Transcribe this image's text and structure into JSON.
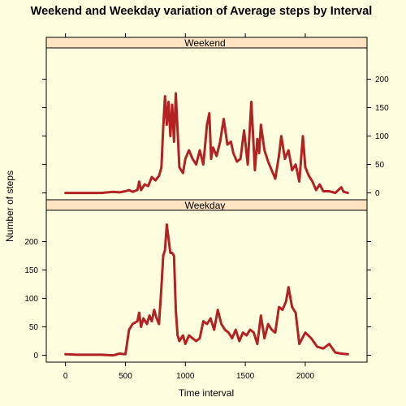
{
  "chart_data": {
    "type": "line",
    "title": "Weekend and Weekday variation of Average steps by Interval",
    "xlabel": "Time interval",
    "ylabel": "Number of steps",
    "xlim": [
      -160,
      2515
    ],
    "x_ticks": [
      0,
      500,
      1000,
      1500,
      2000
    ],
    "y_ticks": [
      0,
      50,
      100,
      150,
      200
    ],
    "grid": false,
    "line_color": "#B22222",
    "strip_color": "#FFE4C4",
    "panels": [
      {
        "name": "Weekend",
        "ylim": [
          -12,
          255
        ],
        "y_tick_side": "right",
        "x": [
          0,
          100,
          200,
          300,
          400,
          450,
          500,
          530,
          560,
          600,
          615,
          630,
          660,
          690,
          720,
          750,
          780,
          800,
          815,
          830,
          845,
          860,
          875,
          890,
          905,
          920,
          950,
          980,
          1000,
          1030,
          1060,
          1090,
          1120,
          1150,
          1180,
          1200,
          1215,
          1230,
          1260,
          1290,
          1320,
          1350,
          1380,
          1400,
          1430,
          1460,
          1490,
          1520,
          1550,
          1580,
          1600,
          1615,
          1630,
          1660,
          1690,
          1720,
          1750,
          1780,
          1800,
          1830,
          1860,
          1890,
          1920,
          1950,
          1980,
          2000,
          2030,
          2060,
          2090,
          2120,
          2150,
          2200,
          2250,
          2300,
          2320,
          2355
        ],
        "y": [
          0,
          0,
          0,
          0,
          2,
          1,
          3,
          5,
          2,
          5,
          20,
          5,
          15,
          12,
          28,
          22,
          30,
          45,
          115,
          170,
          120,
          160,
          100,
          155,
          90,
          175,
          45,
          35,
          60,
          75,
          60,
          50,
          75,
          50,
          120,
          140,
          60,
          80,
          65,
          90,
          130,
          85,
          90,
          70,
          55,
          60,
          110,
          50,
          160,
          40,
          95,
          70,
          120,
          75,
          55,
          40,
          25,
          65,
          100,
          60,
          75,
          40,
          50,
          20,
          100,
          45,
          30,
          20,
          5,
          15,
          3,
          3,
          0,
          10,
          2,
          0
        ]
      },
      {
        "name": "Weekday",
        "ylim": [
          -12,
          255
        ],
        "y_tick_side": "left",
        "x": [
          0,
          100,
          200,
          300,
          400,
          450,
          500,
          530,
          560,
          600,
          615,
          630,
          650,
          680,
          700,
          720,
          740,
          760,
          780,
          800,
          815,
          830,
          845,
          860,
          875,
          890,
          905,
          920,
          935,
          950,
          980,
          1000,
          1030,
          1060,
          1090,
          1120,
          1150,
          1180,
          1210,
          1240,
          1270,
          1300,
          1330,
          1360,
          1390,
          1420,
          1450,
          1480,
          1510,
          1540,
          1570,
          1600,
          1630,
          1660,
          1690,
          1720,
          1750,
          1780,
          1810,
          1840,
          1860,
          1890,
          1920,
          1950,
          2000,
          2050,
          2100,
          2150,
          2200,
          2250,
          2300,
          2355
        ],
        "y": [
          2,
          1,
          1,
          1,
          0,
          3,
          2,
          45,
          55,
          60,
          75,
          50,
          65,
          55,
          70,
          60,
          80,
          65,
          55,
          120,
          175,
          185,
          230,
          205,
          180,
          180,
          175,
          80,
          35,
          25,
          35,
          20,
          35,
          30,
          25,
          30,
          60,
          55,
          65,
          45,
          80,
          55,
          45,
          40,
          30,
          45,
          25,
          40,
          35,
          45,
          40,
          20,
          70,
          30,
          55,
          45,
          40,
          85,
          80,
          95,
          120,
          85,
          75,
          20,
          40,
          30,
          15,
          12,
          20,
          5,
          3,
          2
        ]
      }
    ]
  }
}
